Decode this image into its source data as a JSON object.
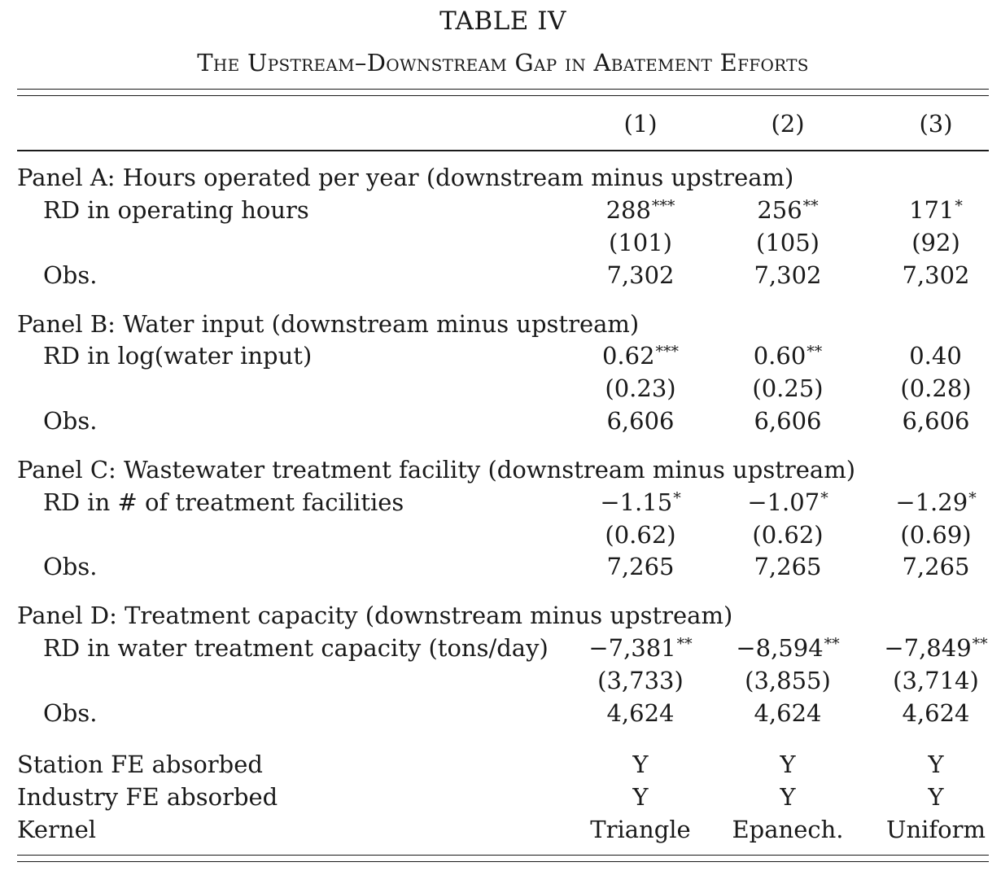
{
  "table": {
    "title": "TABLE IV",
    "subtitle": "The Upstream–Downstream Gap in Abatement Efforts",
    "columns": [
      "(1)",
      "(2)",
      "(3)"
    ],
    "panels": [
      {
        "heading": "Panel A: Hours operated per year (downstream minus upstream)",
        "row_label": "RD in operating hours",
        "estimates": [
          {
            "value": "288",
            "stars": "***"
          },
          {
            "value": "256",
            "stars": "**"
          },
          {
            "value": "171",
            "stars": "*"
          }
        ],
        "std_errors": [
          "(101)",
          "(105)",
          "(92)"
        ],
        "obs_label": "Obs.",
        "obs": [
          "7,302",
          "7,302",
          "7,302"
        ]
      },
      {
        "heading": "Panel B: Water input (downstream minus upstream)",
        "row_label": "RD in log(water input)",
        "estimates": [
          {
            "value": "0.62",
            "stars": "***"
          },
          {
            "value": "0.60",
            "stars": "**"
          },
          {
            "value": "0.40",
            "stars": ""
          }
        ],
        "std_errors": [
          "(0.23)",
          "(0.25)",
          "(0.28)"
        ],
        "obs_label": "Obs.",
        "obs": [
          "6,606",
          "6,606",
          "6,606"
        ]
      },
      {
        "heading": "Panel C: Wastewater treatment facility (downstream minus upstream)",
        "row_label": "RD in # of treatment facilities",
        "estimates": [
          {
            "value": "−1.15",
            "stars": "*"
          },
          {
            "value": "−1.07",
            "stars": "*"
          },
          {
            "value": "−1.29",
            "stars": "*"
          }
        ],
        "std_errors": [
          "(0.62)",
          "(0.62)",
          "(0.69)"
        ],
        "obs_label": "Obs.",
        "obs": [
          "7,265",
          "7,265",
          "7,265"
        ]
      },
      {
        "heading": "Panel D: Treatment capacity (downstream minus upstream)",
        "row_label": "RD in water treatment capacity (tons/day)",
        "estimates": [
          {
            "value": "−7,381",
            "stars": "**"
          },
          {
            "value": "−8,594",
            "stars": "**"
          },
          {
            "value": "−7,849",
            "stars": "**"
          }
        ],
        "std_errors": [
          "(3,733)",
          "(3,855)",
          "(3,714)"
        ],
        "obs_label": "Obs.",
        "obs": [
          "4,624",
          "4,624",
          "4,624"
        ]
      }
    ],
    "footer": [
      {
        "label": "Station FE absorbed",
        "values": [
          "Y",
          "Y",
          "Y"
        ]
      },
      {
        "label": "Industry FE absorbed",
        "values": [
          "Y",
          "Y",
          "Y"
        ]
      },
      {
        "label": "Kernel",
        "values": [
          "Triangle",
          "Epanech.",
          "Uniform"
        ]
      }
    ]
  }
}
